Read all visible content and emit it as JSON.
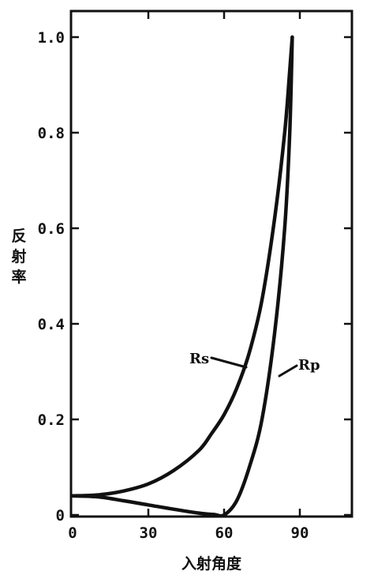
{
  "chart_data": {
    "type": "line",
    "title": "",
    "xlabel": "入射角度",
    "ylabel": "反射率",
    "xlim": [
      0,
      106
    ],
    "ylim": [
      0,
      1.05
    ],
    "x_ticks": [
      0,
      30,
      60,
      90
    ],
    "x_tick_labels": [
      "0",
      "30",
      "60",
      "90"
    ],
    "y_ticks": [
      0,
      0.2,
      0.4,
      0.6,
      0.8,
      1.0
    ],
    "y_tick_labels": [
      "0",
      "0.2",
      "0.4",
      "0.6",
      "0.8",
      "1.0"
    ],
    "grid": false,
    "legend": "inline",
    "series": [
      {
        "name": "Rs",
        "x": [
          0,
          10,
          20,
          30,
          40,
          50,
          55,
          60,
          65,
          70,
          75,
          80,
          84,
          86,
          87
        ],
        "y": [
          0.04,
          0.042,
          0.05,
          0.065,
          0.093,
          0.135,
          0.17,
          0.21,
          0.265,
          0.34,
          0.45,
          0.62,
          0.8,
          0.93,
          1.0
        ]
      },
      {
        "name": "Rp",
        "x": [
          0,
          10,
          20,
          30,
          40,
          50,
          56,
          60,
          65,
          70,
          75,
          80,
          84,
          86,
          87
        ],
        "y": [
          0.04,
          0.038,
          0.03,
          0.021,
          0.012,
          0.004,
          0.001,
          0.0,
          0.03,
          0.1,
          0.2,
          0.38,
          0.6,
          0.8,
          1.0
        ]
      }
    ]
  }
}
